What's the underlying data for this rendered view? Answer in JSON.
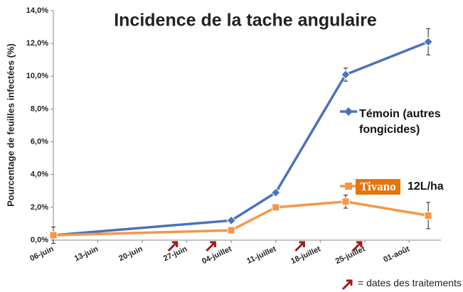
{
  "chart_data": {
    "type": "line",
    "title": "Incidence de la tache angulaire",
    "ylabel": "Pourcentage de feuilles infectées (%)",
    "x": [
      0,
      28,
      35,
      46,
      59
    ],
    "xlim": [
      0,
      61
    ],
    "xticks": [
      {
        "value": 0,
        "label": "06-juin"
      },
      {
        "value": 7,
        "label": "13-juin"
      },
      {
        "value": 14,
        "label": "20-juin"
      },
      {
        "value": 21,
        "label": "27-juin"
      },
      {
        "value": 28,
        "label": "04-juillet"
      },
      {
        "value": 35,
        "label": "11-juillet"
      },
      {
        "value": 42,
        "label": "18-juillet"
      },
      {
        "value": 49,
        "label": "25-juillet"
      },
      {
        "value": 56,
        "label": "01-août"
      }
    ],
    "ylim": [
      0,
      14
    ],
    "yticks": [
      {
        "value": 0,
        "label": "0,0%"
      },
      {
        "value": 2,
        "label": "2,0%"
      },
      {
        "value": 4,
        "label": "4,0%"
      },
      {
        "value": 6,
        "label": "6,0%"
      },
      {
        "value": 8,
        "label": "8,0%"
      },
      {
        "value": 10,
        "label": "10,0%"
      },
      {
        "value": 12,
        "label": "12,0%"
      },
      {
        "value": 14,
        "label": "14,0%"
      }
    ],
    "series": [
      {
        "name": "Témoin (autres fongicides)",
        "color": "#4a72b8",
        "marker": "diamond",
        "values": [
          0.3,
          1.2,
          2.9,
          10.1,
          12.1
        ],
        "errors": [
          0.1,
          0.1,
          0.1,
          0.4,
          0.8
        ]
      },
      {
        "name": "12L/ha",
        "logo": "Tivano",
        "color": "#f79646",
        "marker": "square",
        "values": [
          0.3,
          0.6,
          2.0,
          2.35,
          1.5
        ],
        "errors": [
          0.5,
          0.1,
          0.1,
          0.4,
          0.8
        ]
      }
    ],
    "treatment_days": [
      19,
      25,
      39,
      48
    ],
    "treatment_color": "#9b1b1b",
    "treatment_legend": "= dates des traitements"
  }
}
